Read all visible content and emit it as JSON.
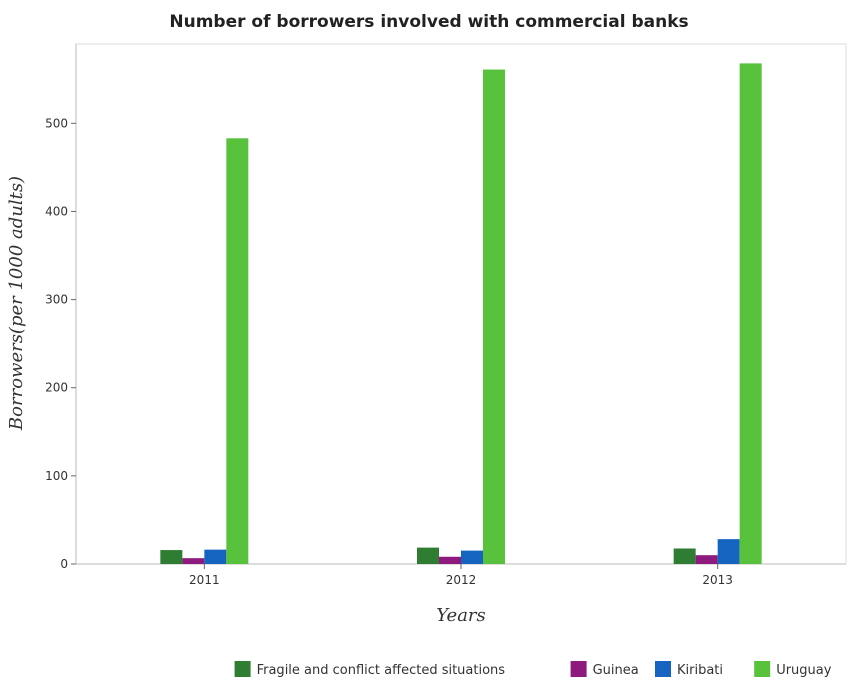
{
  "chart_data": {
    "type": "bar",
    "title": "Number of borrowers involved with commercial banks",
    "xlabel": "Years",
    "ylabel": "Borrowers(per 1000 adults)",
    "categories": [
      "2011",
      "2012",
      "2013"
    ],
    "series": [
      {
        "name": "Fragile and conflict affected situations",
        "color": "#2e7d32",
        "values": [
          15.8,
          18.6,
          17.6
        ]
      },
      {
        "name": "Guinea",
        "color": "#8e1a7e",
        "values": [
          6.6,
          8.2,
          10.0
        ]
      },
      {
        "name": "Kiribati",
        "color": "#1565c0",
        "values": [
          16.3,
          15.2,
          28.2
        ]
      },
      {
        "name": "Uruguay",
        "color": "#58c23d",
        "values": [
          483.0,
          561.0,
          568.0
        ]
      }
    ],
    "yticks": [
      0,
      100,
      200,
      300,
      400,
      500
    ],
    "ylim": [
      0,
      590
    ],
    "grid": false,
    "legend_position": "bottom-right"
  }
}
